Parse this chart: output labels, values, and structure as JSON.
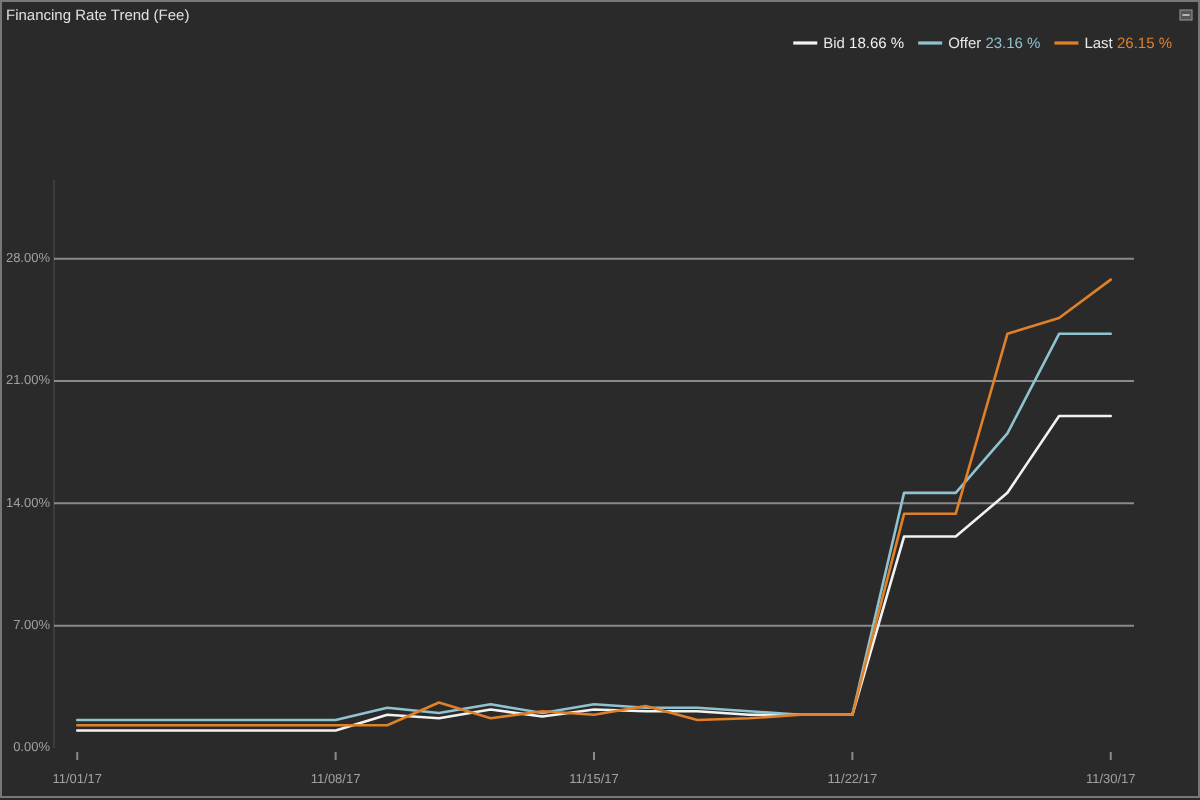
{
  "chart_data": {
    "type": "line",
    "title": "Financing Rate Trend (Fee)",
    "categories": [
      "11/01/17",
      null,
      null,
      null,
      null,
      "11/08/17",
      null,
      null,
      null,
      null,
      "11/15/17",
      null,
      null,
      null,
      null,
      "11/22/17",
      null,
      null,
      null,
      null,
      "11/30/17"
    ],
    "series": [
      {
        "name": "Bid 18.66 %",
        "color": "#f2f2f2",
        "values": [
          1.0,
          1.0,
          1.0,
          1.0,
          1.0,
          1.0,
          1.9,
          1.7,
          2.2,
          1.8,
          2.2,
          2.1,
          2.1,
          1.9,
          1.9,
          1.9,
          12.1,
          12.1,
          14.6,
          19.0,
          19.0
        ]
      },
      {
        "name": "Offer 23.16 %",
        "color": "#8fc3cf",
        "values": [
          1.6,
          1.6,
          1.6,
          1.6,
          1.6,
          1.6,
          2.3,
          2.0,
          2.5,
          2.0,
          2.5,
          2.3,
          2.3,
          2.1,
          1.9,
          1.9,
          14.6,
          14.6,
          18.0,
          23.7,
          23.7
        ]
      },
      {
        "name": "Last 26.15 %",
        "color": "#e0812a",
        "values": [
          1.3,
          1.3,
          1.3,
          1.3,
          1.3,
          1.3,
          1.3,
          2.6,
          1.7,
          2.1,
          1.9,
          2.4,
          1.6,
          1.7,
          1.9,
          1.9,
          13.4,
          13.4,
          23.7,
          24.6,
          26.8
        ]
      }
    ],
    "ylim": [
      0,
      32.5
    ],
    "yticks": [
      {
        "value": 0,
        "label": "0.00%"
      },
      {
        "value": 7,
        "label": "7.00%"
      },
      {
        "value": 14,
        "label": "14.00%"
      },
      {
        "value": 21,
        "label": "21.00%"
      },
      {
        "value": 28,
        "label": "28.00%"
      }
    ],
    "grid": "y",
    "legend": "top right"
  }
}
